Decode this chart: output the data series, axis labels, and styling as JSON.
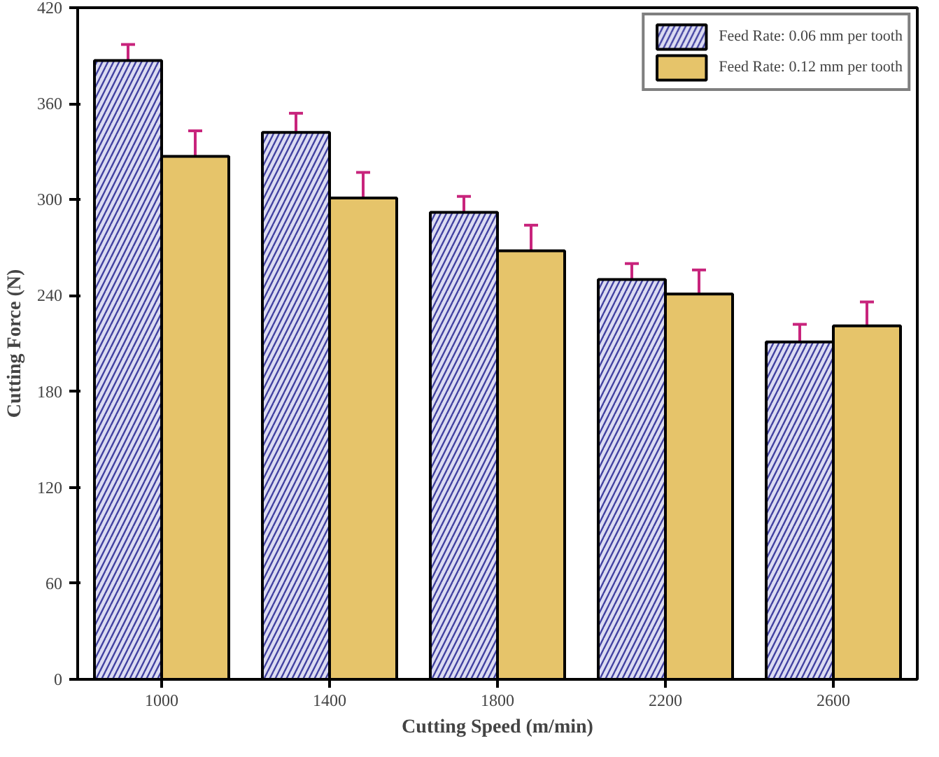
{
  "chart_data": {
    "type": "bar",
    "xlabel": "Cutting Speed (m/min)",
    "ylabel": "Cutting Force (N)",
    "categories": [
      "1000",
      "1400",
      "1800",
      "2200",
      "2600"
    ],
    "series": [
      {
        "name": "Feed Rate: 0.06 mm per tooth",
        "color": "#dcdcf2",
        "values": [
          387,
          342,
          292,
          250,
          211
        ],
        "errors": [
          10,
          12,
          10,
          10,
          11
        ]
      },
      {
        "name": "Feed Rate: 0.12 mm per tooth",
        "color": "#e6c46a",
        "values": [
          327,
          301,
          268,
          241,
          221
        ],
        "errors": [
          16,
          16,
          16,
          15,
          15
        ]
      }
    ],
    "ylim": [
      0,
      420
    ],
    "yticks": [
      0,
      60,
      120,
      180,
      240,
      300,
      360,
      420
    ],
    "grid": false,
    "legend": "top right"
  }
}
